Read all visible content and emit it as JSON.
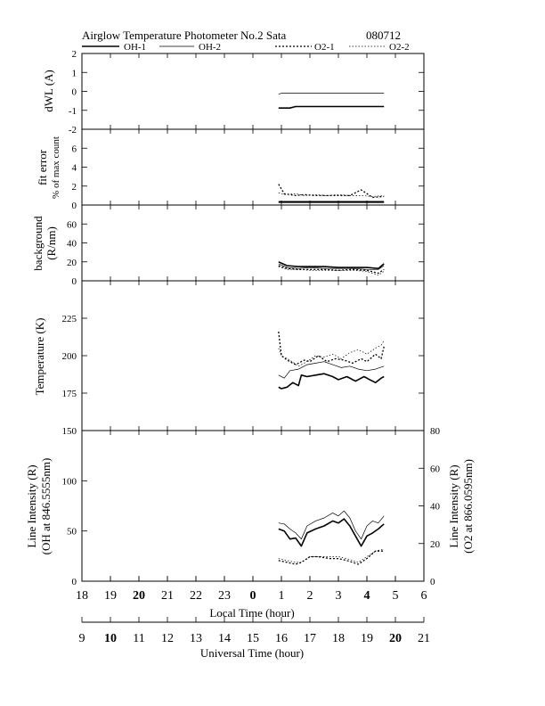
{
  "header": {
    "title": "Airglow Temperature Photometer No.2  Sata",
    "date": "080712"
  },
  "legend": [
    "OH-1",
    "OH-2",
    "O2-1",
    "O2-2"
  ],
  "chart_data": [
    {
      "type": "line",
      "panel": "dWL",
      "ylabel": "dWL (A)",
      "ylim": [
        -2,
        2
      ],
      "yticks": [
        "2",
        "1",
        "0",
        "-1",
        "-2"
      ],
      "x_unit": "local time (hour, 24 = 0)",
      "series": [
        {
          "name": "OH-1",
          "x": [
            24.9,
            25.3,
            25.5,
            27.0,
            28.6
          ],
          "y": [
            -0.88,
            -0.88,
            -0.8,
            -0.8,
            -0.8
          ]
        },
        {
          "name": "OH-2",
          "x": [
            24.9,
            25.0,
            26.0,
            28.6
          ],
          "y": [
            -0.15,
            -0.1,
            -0.1,
            -0.1
          ]
        }
      ]
    },
    {
      "type": "line",
      "panel": "fit error",
      "ylabel": "fit error",
      "ylabel2": "% of max count",
      "ylim": [
        0,
        8
      ],
      "yticks": [
        "6",
        "4",
        "2",
        "0"
      ],
      "series": [
        {
          "name": "OH-1",
          "x": [
            24.9,
            25.5,
            26.0,
            26.5,
            27.0,
            27.5,
            28.0,
            28.6
          ],
          "y": [
            0.3,
            0.3,
            0.3,
            0.3,
            0.3,
            0.3,
            0.3,
            0.3
          ]
        },
        {
          "name": "OH-2",
          "x": [
            24.9,
            25.5,
            26.0,
            26.5,
            27.0,
            27.5,
            28.0,
            28.6
          ],
          "y": [
            0.4,
            0.4,
            0.4,
            0.4,
            0.4,
            0.4,
            0.4,
            0.4
          ]
        },
        {
          "name": "O2-1",
          "x": [
            24.9,
            25.1,
            25.5,
            25.8,
            26.2,
            26.6,
            27.0,
            27.4,
            27.8,
            28.2,
            28.6
          ],
          "y": [
            2.2,
            1.2,
            1.0,
            1.1,
            1.0,
            1.0,
            1.0,
            1.0,
            1.6,
            0.8,
            0.9
          ]
        },
        {
          "name": "O2-2",
          "x": [
            24.9,
            25.1,
            25.5,
            25.8,
            26.2,
            26.6,
            27.0,
            27.4,
            27.8,
            28.2,
            28.6
          ],
          "y": [
            1.3,
            1.1,
            1.2,
            1.0,
            1.1,
            1.0,
            1.1,
            1.0,
            1.0,
            0.9,
            1.0
          ]
        }
      ]
    },
    {
      "type": "line",
      "panel": "background",
      "ylabel": "background",
      "ylabel2": "(R/nm)",
      "ylim": [
        0,
        80
      ],
      "yticks": [
        "60",
        "40",
        "20",
        "0"
      ],
      "series": [
        {
          "name": "OH-1",
          "x": [
            24.9,
            25.2,
            25.6,
            26.0,
            26.5,
            27.0,
            27.5,
            28.0,
            28.4,
            28.6
          ],
          "y": [
            20,
            16,
            15,
            15,
            15,
            14,
            14,
            14,
            13,
            18
          ]
        },
        {
          "name": "OH-2",
          "x": [
            24.9,
            25.2,
            25.6,
            26.0,
            26.5,
            27.0,
            27.5,
            28.0,
            28.4,
            28.6
          ],
          "y": [
            18,
            14,
            13,
            14,
            13,
            13,
            13,
            12,
            12,
            16
          ]
        },
        {
          "name": "O2-1",
          "x": [
            24.9,
            25.2,
            25.6,
            26.0,
            26.5,
            27.0,
            27.5,
            28.0,
            28.4,
            28.6
          ],
          "y": [
            16,
            13,
            12,
            12,
            12,
            11,
            12,
            11,
            8,
            12
          ]
        },
        {
          "name": "O2-2",
          "x": [
            24.9,
            25.2,
            25.6,
            26.0,
            26.5,
            27.0,
            27.5,
            28.0,
            28.4,
            28.6
          ],
          "y": [
            15,
            12,
            12,
            11,
            11,
            11,
            11,
            10,
            6,
            10
          ]
        }
      ]
    },
    {
      "type": "line",
      "panel": "temperature",
      "ylabel": "Temperature (K)",
      "ylim": [
        150,
        250
      ],
      "yticks": [
        "225",
        "200",
        "175"
      ],
      "series": [
        {
          "name": "OH-1",
          "x": [
            24.9,
            25.0,
            25.2,
            25.4,
            25.6,
            25.7,
            25.9,
            26.2,
            26.5,
            26.8,
            27.0,
            27.3,
            27.6,
            27.9,
            28.1,
            28.3,
            28.5,
            28.6
          ],
          "y": [
            179,
            178,
            179,
            182,
            180,
            187,
            186,
            187,
            188,
            186,
            184,
            186,
            183,
            186,
            184,
            182,
            185,
            186
          ]
        },
        {
          "name": "OH-2",
          "x": [
            24.9,
            25.1,
            25.3,
            25.6,
            25.9,
            26.2,
            26.5,
            26.8,
            27.1,
            27.4,
            27.7,
            28.0,
            28.3,
            28.6
          ],
          "y": [
            187,
            185,
            190,
            191,
            194,
            195,
            196,
            194,
            192,
            193,
            191,
            190,
            191,
            193
          ]
        },
        {
          "name": "O2-1",
          "x": [
            24.9,
            25.0,
            25.2,
            25.5,
            25.8,
            26.0,
            26.3,
            26.6,
            26.9,
            27.2,
            27.5,
            27.8,
            28.0,
            28.3,
            28.5,
            28.6
          ],
          "y": [
            216,
            200,
            197,
            194,
            197,
            196,
            200,
            196,
            198,
            197,
            195,
            198,
            196,
            201,
            198,
            206
          ]
        },
        {
          "name": "O2-2",
          "x": [
            24.9,
            25.0,
            25.3,
            25.6,
            25.9,
            26.2,
            26.5,
            26.8,
            27.1,
            27.4,
            27.7,
            28.0,
            28.3,
            28.5,
            28.6
          ],
          "y": [
            205,
            200,
            197,
            193,
            196,
            200,
            199,
            201,
            198,
            202,
            204,
            201,
            205,
            207,
            210
          ]
        }
      ]
    },
    {
      "type": "line",
      "panel": "line intensity",
      "ylabel": "Line Intensity (R)",
      "ylabel2": "(OH at 846.5555nm)",
      "y2label": "Line Intensity (R)",
      "y2label2": "(O2 at 866.0595nm)",
      "ylim": [
        0,
        150
      ],
      "yticks": [
        "150",
        "100",
        "50",
        "0"
      ],
      "y2lim": [
        0,
        80
      ],
      "y2ticks": [
        "80",
        "60",
        "40",
        "20",
        "0"
      ],
      "series": [
        {
          "name": "OH-1",
          "axis": "left",
          "x": [
            24.9,
            25.1,
            25.3,
            25.5,
            25.7,
            25.9,
            26.2,
            26.5,
            26.8,
            27.0,
            27.2,
            27.4,
            27.6,
            27.8,
            28.0,
            28.2,
            28.4,
            28.6
          ],
          "y": [
            52,
            50,
            42,
            43,
            35,
            48,
            52,
            55,
            60,
            58,
            62,
            55,
            45,
            35,
            45,
            48,
            52,
            57
          ]
        },
        {
          "name": "OH-2",
          "axis": "left",
          "x": [
            24.9,
            25.1,
            25.3,
            25.5,
            25.7,
            25.9,
            26.2,
            26.5,
            26.8,
            27.0,
            27.2,
            27.4,
            27.6,
            27.8,
            28.0,
            28.2,
            28.4,
            28.6
          ],
          "y": [
            58,
            57,
            52,
            48,
            42,
            55,
            60,
            63,
            68,
            65,
            70,
            63,
            50,
            42,
            55,
            60,
            58,
            65
          ]
        },
        {
          "name": "O2-1",
          "axis": "right",
          "x": [
            24.9,
            25.2,
            25.5,
            25.7,
            26.0,
            26.3,
            26.7,
            27.0,
            27.3,
            27.7,
            28.0,
            28.3,
            28.6
          ],
          "y": [
            11,
            10,
            9,
            10,
            13,
            13,
            12,
            12,
            11,
            9,
            12,
            16,
            16
          ]
        },
        {
          "name": "O2-2",
          "axis": "right",
          "x": [
            24.9,
            25.2,
            25.5,
            25.7,
            26.0,
            26.3,
            26.7,
            27.0,
            27.3,
            27.7,
            28.0,
            28.3,
            28.6
          ],
          "y": [
            12,
            11,
            10,
            10,
            13,
            13,
            13,
            13,
            12,
            10,
            13,
            16,
            17
          ]
        }
      ]
    }
  ],
  "x_axes": {
    "local": {
      "label": "Local Time (hour)",
      "ticks": [
        "18",
        "19",
        "20",
        "21",
        "22",
        "23",
        "0",
        "1",
        "2",
        "3",
        "4",
        "5",
        "6"
      ],
      "bold": [
        "20",
        "0",
        "4"
      ]
    },
    "universal": {
      "label": "Universal Time (hour)",
      "ticks": [
        "9",
        "10",
        "11",
        "12",
        "13",
        "14",
        "15",
        "16",
        "17",
        "18",
        "19",
        "20",
        "21"
      ],
      "bold": [
        "10",
        "20"
      ]
    }
  }
}
